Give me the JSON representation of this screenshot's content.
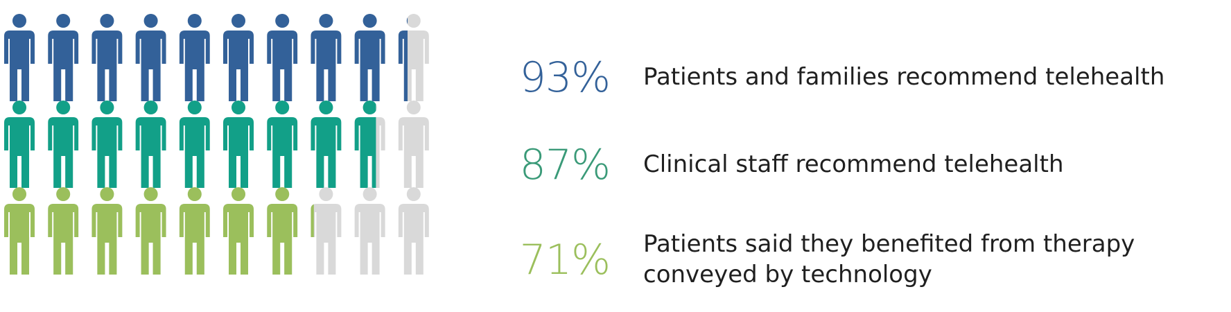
{
  "chart_data": {
    "type": "pictogram",
    "icons_per_row": 10,
    "rows": [
      {
        "percent_label": "93%",
        "value": 93,
        "label": "Patients and families recommend telehealth",
        "color": "#336199"
      },
      {
        "percent_label": "87%",
        "value": 87,
        "label": "Clinical staff recommend telehealth",
        "color": "#12a088"
      },
      {
        "percent_label": "71%",
        "value": 71,
        "label": "Patients said they benefited from therapy conveyed by technology",
        "color": "#9bbf5c"
      }
    ],
    "empty_color": "#d9d9d9"
  }
}
